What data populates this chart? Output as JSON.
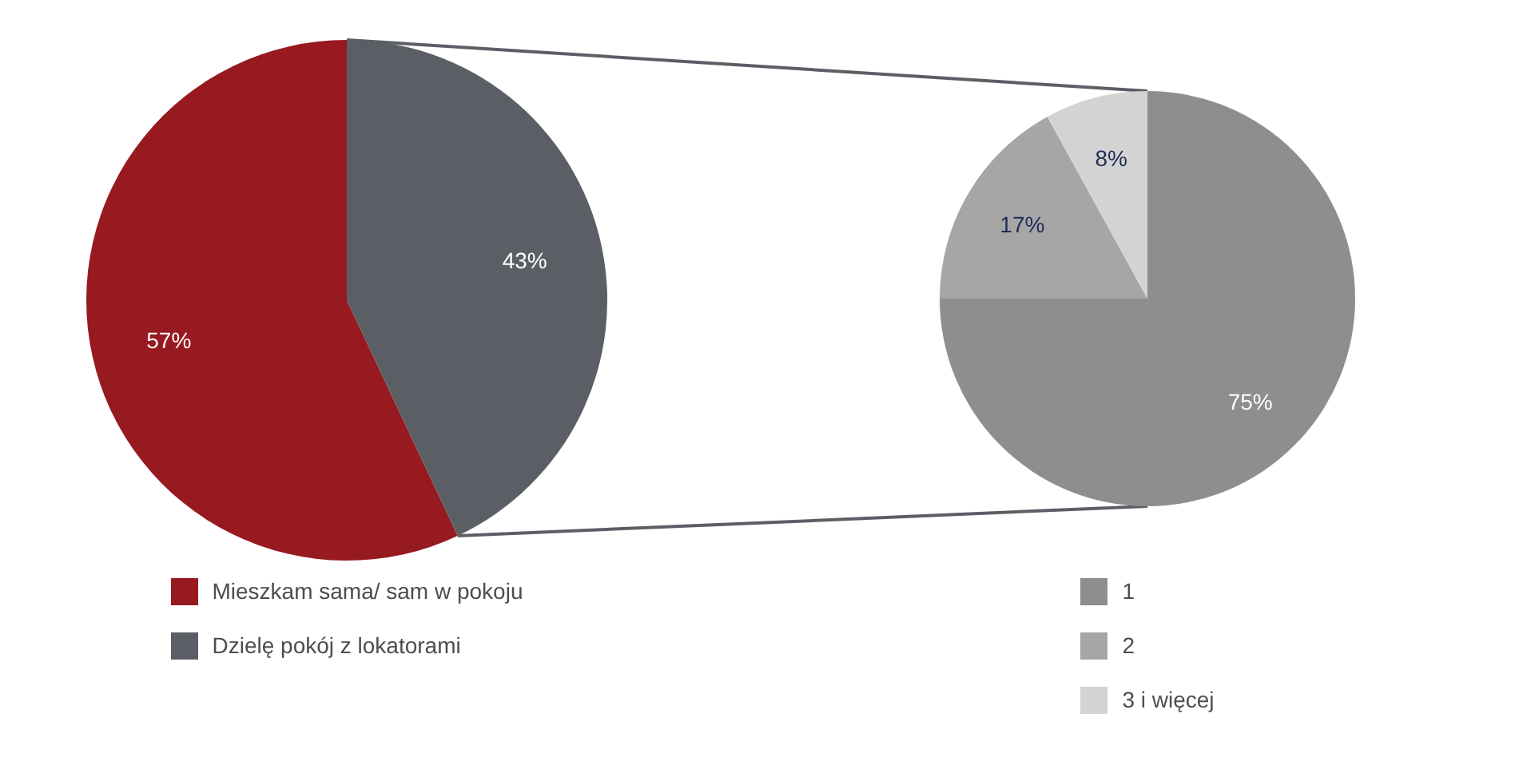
{
  "chart_data": [
    {
      "type": "pie",
      "categories": [
        "Mieszkam sama/ sam w pokoju",
        "Dzielę pokój z lokatorami"
      ],
      "values": [
        57,
        43
      ],
      "colors": [
        "#971a20",
        "#5b5f65"
      ],
      "value_labels": [
        "57%",
        "43%"
      ],
      "legend": "bottom"
    },
    {
      "type": "pie",
      "categories": [
        "1",
        "2",
        "3 i więcej"
      ],
      "values": [
        75,
        17,
        8
      ],
      "colors": [
        "#8f8e8f",
        "#a7a6a7",
        "#d3d3d4"
      ],
      "value_labels": [
        "75%",
        "17%",
        "8%"
      ],
      "legend": "bottom"
    }
  ]
}
